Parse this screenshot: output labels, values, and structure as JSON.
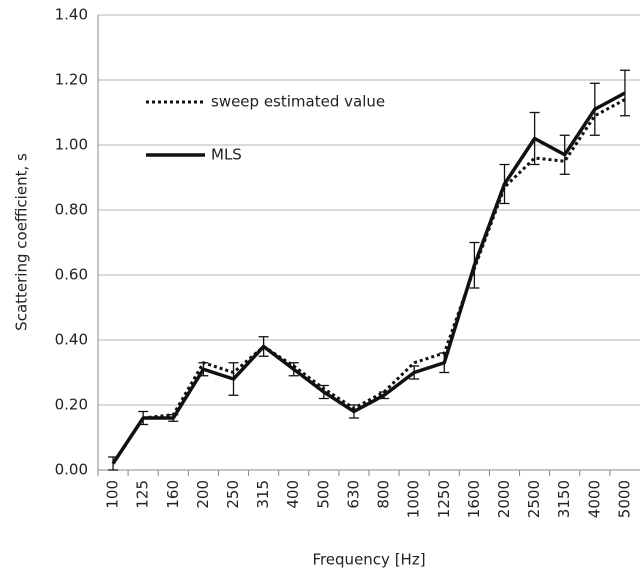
{
  "chart_data": {
    "type": "line",
    "x_label": "Frequency [Hz]",
    "y_label": "Scattering coefficient, s",
    "categories": [
      "100",
      "125",
      "160",
      "200",
      "250",
      "315",
      "400",
      "500",
      "630",
      "800",
      "1000",
      "1250",
      "1600",
      "2000",
      "2500",
      "3150",
      "4000",
      "5000"
    ],
    "series": [
      {
        "name": "sweep estimated value",
        "color": "#111111",
        "dash": "dotted",
        "values": [
          0.02,
          0.16,
          0.17,
          0.33,
          0.3,
          0.38,
          0.32,
          0.25,
          0.19,
          0.24,
          0.33,
          0.36,
          0.62,
          0.87,
          0.96,
          0.95,
          1.09,
          1.14
        ]
      },
      {
        "name": "MLS",
        "color": "#111111",
        "dash": "solid",
        "values": [
          0.02,
          0.16,
          0.16,
          0.31,
          0.28,
          0.38,
          0.31,
          0.24,
          0.18,
          0.23,
          0.3,
          0.33,
          0.63,
          0.88,
          1.02,
          0.97,
          1.11,
          1.16
        ],
        "errors": [
          0.02,
          0.02,
          0.01,
          0.02,
          0.05,
          0.03,
          0.02,
          0.02,
          0.02,
          0.01,
          0.02,
          0.03,
          0.07,
          0.06,
          0.08,
          0.06,
          0.08,
          0.07
        ]
      }
    ],
    "ylim": [
      0,
      1.4
    ],
    "yticks": [
      {
        "value": 0,
        "label": "0.00"
      },
      {
        "value": 0.2,
        "label": "0.20"
      },
      {
        "value": 0.4,
        "label": "0.40"
      },
      {
        "value": 0.6,
        "label": "0.60"
      },
      {
        "value": 0.8,
        "label": "0.80"
      },
      {
        "value": 1.0,
        "label": "1.00"
      },
      {
        "value": 1.2,
        "label": "1.20"
      },
      {
        "value": 1.4,
        "label": "1.40"
      }
    ],
    "grid": true,
    "legend": "upper left"
  }
}
